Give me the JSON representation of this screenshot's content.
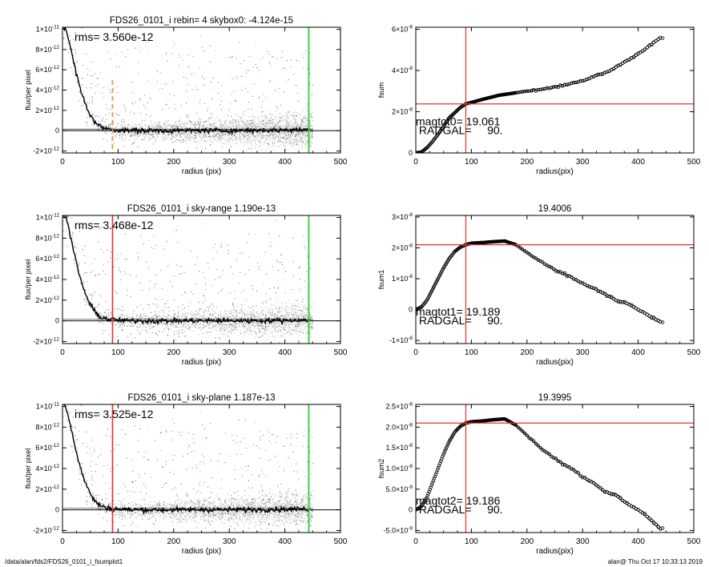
{
  "footer": {
    "left": "/data/alan/fds2/FDS26_0101_i_fsumplot1",
    "right": "alan@  Thu Oct 17 10:33:13 2019"
  },
  "colors": {
    "scatter_gray": "#b4b4b4",
    "profile": "#000000",
    "radius_marker_red": "#e8302a",
    "edge_marker_green": "#2ecc40",
    "orange_dashed": "#f0a040"
  },
  "chart_data": [
    {
      "id": "profile0",
      "type": "scatter",
      "title": "FDS26_0101_i rebin= 4    skybox0: -4.124e-15",
      "xlabel": "radius (pix)",
      "ylabel": "flux/per pixel",
      "xlim": [
        0,
        500
      ],
      "ylim": [
        -2.2e-12,
        1.02e-11
      ],
      "xticks": [
        "0",
        "100",
        "200",
        "300",
        "400",
        "500"
      ],
      "yticks": [
        {
          "v": -2e-12,
          "m": "-2×10",
          "e": "-12"
        },
        {
          "v": 0,
          "m": "0",
          "e": ""
        },
        {
          "v": 2e-12,
          "m": "2×10",
          "e": "-12"
        },
        {
          "v": 4e-12,
          "m": "4×10",
          "e": "-12"
        },
        {
          "v": 6e-12,
          "m": "6×10",
          "e": "-12"
        },
        {
          "v": 8e-12,
          "m": "8×10",
          "e": "-12"
        },
        {
          "v": 1e-11,
          "m": "1×10",
          "e": "-11"
        }
      ],
      "annotation": "rms= 3.560e-12",
      "vline_primary": {
        "x": 90,
        "style": "orange-dashed"
      },
      "vline_edge": {
        "x": 443
      },
      "profile": [
        [
          5,
          1.02e-11
        ],
        [
          10,
          9.2e-12
        ],
        [
          15,
          8e-12
        ],
        [
          20,
          6.8e-12
        ],
        [
          25,
          5.6e-12
        ],
        [
          30,
          4.5e-12
        ],
        [
          35,
          3.6e-12
        ],
        [
          40,
          2.8e-12
        ],
        [
          45,
          2.1e-12
        ],
        [
          50,
          1.6e-12
        ],
        [
          55,
          1.1e-12
        ],
        [
          60,
          7.5e-13
        ],
        [
          65,
          5e-13
        ],
        [
          70,
          3.5e-13
        ],
        [
          80,
          2e-13
        ],
        [
          90,
          1e-13
        ],
        [
          100,
          6e-14
        ],
        [
          120,
          2e-14
        ],
        [
          150,
          0
        ],
        [
          200,
          0
        ],
        [
          250,
          2e-14
        ],
        [
          300,
          0
        ],
        [
          350,
          3e-14
        ],
        [
          400,
          5e-14
        ],
        [
          443,
          1e-13
        ]
      ]
    },
    {
      "id": "fsum0",
      "type": "line",
      "title": "",
      "xlabel": "radius(pix)",
      "ylabel": "fsum",
      "xlim": [
        0,
        500
      ],
      "ylim": [
        0,
        6.1e-08
      ],
      "xticks": [
        "0",
        "100",
        "200",
        "300",
        "400",
        "500"
      ],
      "yticks": [
        {
          "v": 0,
          "m": "0",
          "e": ""
        },
        {
          "v": 2e-08,
          "m": "2×10",
          "e": "-8"
        },
        {
          "v": 4e-08,
          "m": "4×10",
          "e": "-8"
        },
        {
          "v": 6e-08,
          "m": "6×10",
          "e": "-8"
        }
      ],
      "annotation_lines": [
        "magtot0=  19.061",
        " RADGAL=     90."
      ],
      "vline": {
        "x": 90
      },
      "hline": {
        "y": 2.38e-08
      },
      "curve": [
        [
          0,
          0
        ],
        [
          10,
          4e-10
        ],
        [
          20,
          2.5e-09
        ],
        [
          30,
          5.5e-09
        ],
        [
          40,
          9e-09
        ],
        [
          50,
          1.3e-08
        ],
        [
          60,
          1.7e-08
        ],
        [
          70,
          1.95e-08
        ],
        [
          80,
          2.2e-08
        ],
        [
          90,
          2.38e-08
        ],
        [
          100,
          2.45e-08
        ],
        [
          120,
          2.6e-08
        ],
        [
          150,
          2.8e-08
        ],
        [
          200,
          3e-08
        ],
        [
          250,
          3.2e-08
        ],
        [
          300,
          3.5e-08
        ],
        [
          350,
          4e-08
        ],
        [
          400,
          4.8e-08
        ],
        [
          440,
          5.6e-08
        ]
      ]
    },
    {
      "id": "profile1",
      "type": "scatter",
      "title": "FDS26_0101_i sky-range  1.190e-13",
      "xlabel": "radius (pix)",
      "ylabel": "flux/per pixel",
      "xlim": [
        0,
        500
      ],
      "ylim": [
        -2.2e-12,
        1.02e-11
      ],
      "xticks": [
        "0",
        "100",
        "200",
        "300",
        "400",
        "500"
      ],
      "yticks": [
        {
          "v": -2e-12,
          "m": "-2×10",
          "e": "-12"
        },
        {
          "v": 0,
          "m": "0",
          "e": ""
        },
        {
          "v": 2e-12,
          "m": "2×10",
          "e": "-12"
        },
        {
          "v": 4e-12,
          "m": "4×10",
          "e": "-12"
        },
        {
          "v": 6e-12,
          "m": "6×10",
          "e": "-12"
        },
        {
          "v": 8e-12,
          "m": "8×10",
          "e": "-12"
        },
        {
          "v": 1e-11,
          "m": "1×10",
          "e": "-11"
        }
      ],
      "annotation": "rms= 3.468e-12",
      "vline_primary": {
        "x": 90,
        "style": "red-solid"
      },
      "vline_edge": {
        "x": 443
      },
      "profile": [
        [
          5,
          1.02e-11
        ],
        [
          10,
          9.2e-12
        ],
        [
          15,
          8e-12
        ],
        [
          20,
          6.8e-12
        ],
        [
          25,
          5.6e-12
        ],
        [
          30,
          4.5e-12
        ],
        [
          35,
          3.6e-12
        ],
        [
          40,
          2.8e-12
        ],
        [
          45,
          2.1e-12
        ],
        [
          50,
          1.6e-12
        ],
        [
          55,
          1.1e-12
        ],
        [
          60,
          7.5e-13
        ],
        [
          65,
          5e-13
        ],
        [
          70,
          3.5e-13
        ],
        [
          80,
          2e-13
        ],
        [
          90,
          1e-13
        ],
        [
          100,
          6e-14
        ],
        [
          120,
          2e-14
        ],
        [
          150,
          0
        ],
        [
          200,
          0
        ],
        [
          250,
          2e-14
        ],
        [
          300,
          0
        ],
        [
          350,
          3e-14
        ],
        [
          400,
          5e-14
        ],
        [
          443,
          1e-13
        ]
      ]
    },
    {
      "id": "fsum1",
      "type": "line",
      "title": "19.4006",
      "xlabel": "radius(pix)",
      "ylabel": "fsum1",
      "xlim": [
        0,
        500
      ],
      "ylim": [
        -1.1e-08,
        3.05e-08
      ],
      "xticks": [
        "0",
        "100",
        "200",
        "300",
        "400",
        "500"
      ],
      "yticks": [
        {
          "v": -1e-08,
          "m": "-1×10",
          "e": "-8"
        },
        {
          "v": 0,
          "m": "0",
          "e": ""
        },
        {
          "v": 1e-08,
          "m": "1×10",
          "e": "-8"
        },
        {
          "v": 2e-08,
          "m": "2×10",
          "e": "-8"
        },
        {
          "v": 3e-08,
          "m": "3×10",
          "e": "-8"
        }
      ],
      "annotation_lines": [
        "magtot1=  19.189",
        " RADGAL=     90."
      ],
      "vline": {
        "x": 90
      },
      "hline": {
        "y": 2.1e-08
      },
      "curve": [
        [
          0,
          0
        ],
        [
          10,
          8e-10
        ],
        [
          20,
          3e-09
        ],
        [
          30,
          6.5e-09
        ],
        [
          40,
          1e-08
        ],
        [
          50,
          1.35e-08
        ],
        [
          60,
          1.65e-08
        ],
        [
          70,
          1.88e-08
        ],
        [
          80,
          2.02e-08
        ],
        [
          90,
          2.1e-08
        ],
        [
          100,
          2.15e-08
        ],
        [
          120,
          2.17e-08
        ],
        [
          140,
          2.2e-08
        ],
        [
          160,
          2.22e-08
        ],
        [
          180,
          2.1e-08
        ],
        [
          200,
          1.85e-08
        ],
        [
          220,
          1.6e-08
        ],
        [
          240,
          1.4e-08
        ],
        [
          260,
          1.2e-08
        ],
        [
          280,
          1.05e-08
        ],
        [
          300,
          8.5e-09
        ],
        [
          320,
          7e-09
        ],
        [
          340,
          5e-09
        ],
        [
          360,
          3e-09
        ],
        [
          380,
          2e-09
        ],
        [
          400,
          0
        ],
        [
          420,
          -2e-09
        ],
        [
          440,
          -4e-09
        ]
      ]
    },
    {
      "id": "profile2",
      "type": "scatter",
      "title": "FDS26_0101_i sky-plane  1.187e-13",
      "xlabel": "radius (pix)",
      "ylabel": "flux/per pixel",
      "xlim": [
        0,
        500
      ],
      "ylim": [
        -2.2e-12,
        1.02e-11
      ],
      "xticks": [
        "0",
        "100",
        "200",
        "300",
        "400",
        "500"
      ],
      "yticks": [
        {
          "v": -2e-12,
          "m": "-2×10",
          "e": "-12"
        },
        {
          "v": 0,
          "m": "0",
          "e": ""
        },
        {
          "v": 2e-12,
          "m": "2×10",
          "e": "-12"
        },
        {
          "v": 4e-12,
          "m": "4×10",
          "e": "-12"
        },
        {
          "v": 6e-12,
          "m": "6×10",
          "e": "-12"
        },
        {
          "v": 8e-12,
          "m": "8×10",
          "e": "-12"
        },
        {
          "v": 1e-11,
          "m": "1×10",
          "e": "-11"
        }
      ],
      "annotation": "rms= 3.525e-12",
      "vline_primary": {
        "x": 90,
        "style": "red-solid"
      },
      "vline_edge": {
        "x": 443
      },
      "profile": [
        [
          5,
          1.02e-11
        ],
        [
          10,
          9.2e-12
        ],
        [
          15,
          8e-12
        ],
        [
          20,
          6.8e-12
        ],
        [
          25,
          5.6e-12
        ],
        [
          30,
          4.5e-12
        ],
        [
          35,
          3.6e-12
        ],
        [
          40,
          2.8e-12
        ],
        [
          45,
          2.1e-12
        ],
        [
          50,
          1.6e-12
        ],
        [
          55,
          1.1e-12
        ],
        [
          60,
          7.5e-13
        ],
        [
          65,
          5e-13
        ],
        [
          70,
          3.5e-13
        ],
        [
          80,
          2e-13
        ],
        [
          90,
          1e-13
        ],
        [
          100,
          6e-14
        ],
        [
          120,
          2e-14
        ],
        [
          150,
          0
        ],
        [
          200,
          0
        ],
        [
          250,
          2e-14
        ],
        [
          300,
          0
        ],
        [
          350,
          3e-14
        ],
        [
          400,
          5e-14
        ],
        [
          443,
          1e-13
        ]
      ]
    },
    {
      "id": "fsum2",
      "type": "line",
      "title": "19.3995",
      "xlabel": "radius(pix)",
      "ylabel": "fsum2",
      "xlim": [
        0,
        500
      ],
      "ylim": [
        -5.5e-09,
        2.55e-08
      ],
      "xticks": [
        "0",
        "100",
        "200",
        "300",
        "400",
        "500"
      ],
      "yticks": [
        {
          "v": -5e-09,
          "m": "-5.0×10",
          "e": "-9"
        },
        {
          "v": 0,
          "m": "0",
          "e": ""
        },
        {
          "v": 5e-09,
          "m": "5.0×10",
          "e": "-9"
        },
        {
          "v": 1e-08,
          "m": "1.0×10",
          "e": "-8"
        },
        {
          "v": 1.5e-08,
          "m": "1.5×10",
          "e": "-8"
        },
        {
          "v": 2e-08,
          "m": "2.0×10",
          "e": "-8"
        },
        {
          "v": 2.5e-08,
          "m": "2.5×10",
          "e": "-8"
        }
      ],
      "annotation_lines": [
        "magtot2=  19.186",
        " RADGAL=     90."
      ],
      "vline": {
        "x": 90
      },
      "hline": {
        "y": 2.1e-08
      },
      "curve": [
        [
          0,
          0
        ],
        [
          10,
          8e-10
        ],
        [
          20,
          3e-09
        ],
        [
          30,
          6.5e-09
        ],
        [
          40,
          1e-08
        ],
        [
          50,
          1.35e-08
        ],
        [
          60,
          1.65e-08
        ],
        [
          70,
          1.88e-08
        ],
        [
          80,
          2.02e-08
        ],
        [
          90,
          2.1e-08
        ],
        [
          100,
          2.13e-08
        ],
        [
          120,
          2.15e-08
        ],
        [
          140,
          2.18e-08
        ],
        [
          160,
          2.2e-08
        ],
        [
          180,
          2.05e-08
        ],
        [
          200,
          1.8e-08
        ],
        [
          220,
          1.55e-08
        ],
        [
          240,
          1.35e-08
        ],
        [
          260,
          1.15e-08
        ],
        [
          280,
          1e-08
        ],
        [
          300,
          8e-09
        ],
        [
          320,
          6.5e-09
        ],
        [
          340,
          4.5e-09
        ],
        [
          360,
          3.5e-09
        ],
        [
          380,
          1.5e-09
        ],
        [
          400,
          0
        ],
        [
          420,
          -2e-09
        ],
        [
          440,
          -4.5e-09
        ]
      ]
    }
  ]
}
